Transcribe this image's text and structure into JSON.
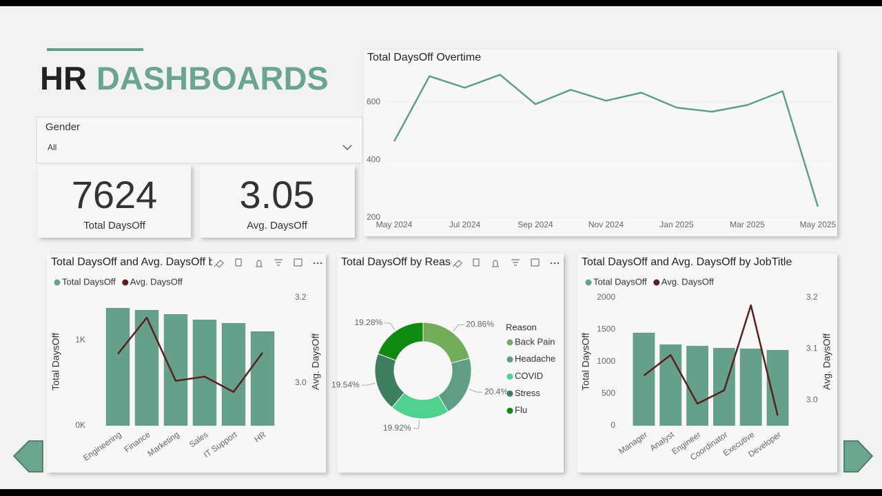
{
  "header": {
    "title_dark": "HR",
    "title_accent": "DASHBOARDS"
  },
  "slicer": {
    "label": "Gender",
    "value": "All"
  },
  "cards": [
    {
      "value": 7624,
      "label": "Total DaysOff"
    },
    {
      "value": 3.05,
      "label": "Avg. DaysOff"
    }
  ],
  "chart_data": [
    {
      "type": "line",
      "title": "Total DaysOff Overtime",
      "categories": [
        "May 2024",
        null,
        "Jul 2024",
        null,
        "Sep 2024",
        null,
        "Nov 2024",
        null,
        "Jan 2025",
        null,
        "Mar 2025",
        null,
        "May 2025"
      ],
      "values": [
        464,
        690,
        650,
        695,
        593,
        643,
        605,
        633,
        581,
        567,
        590,
        638,
        238
      ],
      "color": "#5e9e86",
      "ylim": [
        200,
        720
      ],
      "yticks": [
        200,
        400,
        600
      ],
      "grid": true
    },
    {
      "type": "combo",
      "title": "Total DaysOff and Avg. DaysOff by Department",
      "categories": [
        "Engineering",
        "Finance",
        "Marketing",
        "Sales",
        "IT Support",
        "HR"
      ],
      "series": [
        {
          "name": "Total DaysOff",
          "type": "bar",
          "color": "#64a08a",
          "values": [
            1379,
            1355,
            1306,
            1242,
            1202,
            1105
          ]
        },
        {
          "name": "Avg. DaysOff",
          "type": "line",
          "axis": "y2",
          "color": "#5a1e1e",
          "values": [
            3.068,
            3.153,
            3.005,
            3.015,
            2.979,
            3.071
          ]
        }
      ],
      "ylabel": "Total DaysOff",
      "y2label": "Avg. DaysOff",
      "ylim": [
        0,
        1500
      ],
      "yticks": [
        {
          "value": 0,
          "label": "0K"
        },
        {
          "value": 1000,
          "label": "1K"
        }
      ],
      "y2lim": [
        2.9,
        3.2
      ],
      "y2ticks": [
        {
          "value": 3,
          "label": "3.0"
        },
        3.2
      ]
    },
    {
      "type": "donut",
      "title": "Total DaysOff by Reason",
      "legend_title": "Reason",
      "categories": [
        "Back Pain",
        "Headache",
        "COVID",
        "Stress",
        "Flu"
      ],
      "values": [
        20.86,
        20.4,
        19.92,
        19.54,
        19.28
      ],
      "value_labels": [
        "20.86%",
        "20.4%",
        "19.92%",
        "19.54%",
        "19.28%"
      ],
      "colors": [
        "#72ad5a",
        "#5f9e85",
        "#4fd18f",
        "#3d7d60",
        "#118a11"
      ]
    },
    {
      "type": "combo",
      "title": "Total DaysOff and Avg. DaysOff by JobTitle",
      "categories": [
        "Manager",
        "Analyst",
        "Engineer",
        "Coordinator",
        "Executive",
        "Developer"
      ],
      "series": [
        {
          "name": "Total DaysOff",
          "type": "bar",
          "color": "#64a08a",
          "values": [
            1452,
            1269,
            1247,
            1215,
            1204,
            1183
          ]
        },
        {
          "name": "Avg. DaysOff",
          "type": "line",
          "axis": "y2",
          "color": "#5a1e1e",
          "values": [
            3.048,
            3.088,
            2.993,
            3.019,
            3.185,
            2.97
          ]
        }
      ],
      "ylabel": "Total DaysOff",
      "y2label": "Avg. DaysOff",
      "ylim": [
        0,
        2000
      ],
      "yticks": [
        0,
        500,
        1000,
        1500,
        2000
      ],
      "y2lim": [
        2.95,
        3.2
      ],
      "y2ticks": [
        {
          "value": 3,
          "label": "3.0"
        },
        3.1,
        3.2
      ]
    }
  ]
}
